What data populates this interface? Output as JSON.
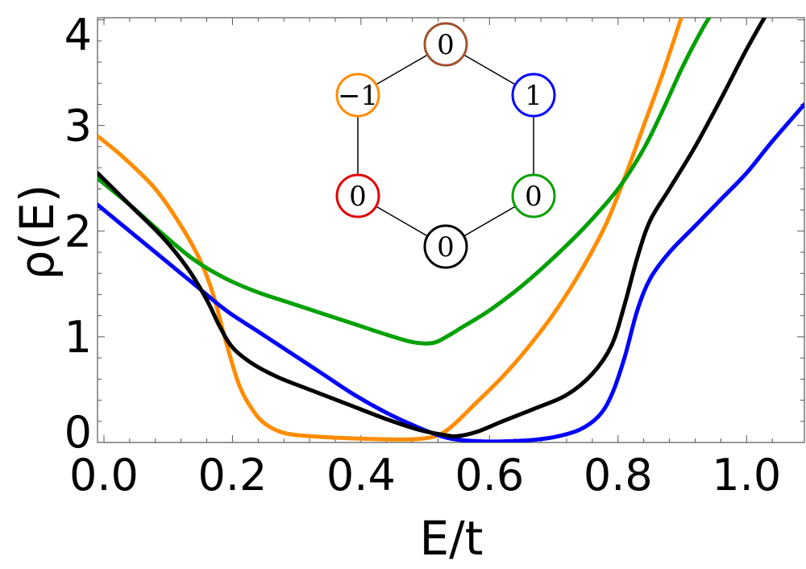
{
  "chart_data": {
    "type": "line",
    "xlabel": "E/t",
    "ylabel": "ρ(E)",
    "xlim": [
      -0.01,
      1.09
    ],
    "ylim": [
      0,
      4.02
    ],
    "x_ticks": [
      "0.0",
      "0.2",
      "0.4",
      "0.6",
      "0.8",
      "1.0"
    ],
    "x_tick_values": [
      0.0,
      0.2,
      0.4,
      0.6,
      0.8,
      1.0
    ],
    "y_ticks": [
      "0",
      "1",
      "2",
      "3",
      "4"
    ],
    "y_tick_values": [
      0,
      1,
      2,
      3,
      4
    ],
    "grid": false,
    "series": [
      {
        "color": "#ff8c00",
        "x": [
          -0.01,
          0.03,
          0.08,
          0.12,
          0.15,
          0.17,
          0.19,
          0.21,
          0.23,
          0.25,
          0.28,
          0.32,
          0.38,
          0.44,
          0.48,
          0.51,
          0.53,
          0.55,
          0.58,
          0.62,
          0.66,
          0.7,
          0.74,
          0.78,
          0.81,
          0.84,
          0.87,
          0.9
        ],
        "y": [
          2.9,
          2.7,
          2.4,
          2.05,
          1.72,
          1.4,
          0.95,
          0.55,
          0.32,
          0.18,
          0.09,
          0.06,
          0.04,
          0.03,
          0.03,
          0.05,
          0.1,
          0.2,
          0.38,
          0.62,
          0.9,
          1.22,
          1.6,
          2.05,
          2.5,
          3.0,
          3.5,
          4.05
        ]
      },
      {
        "color": "#0000ff",
        "x": [
          -0.01,
          0.04,
          0.09,
          0.14,
          0.19,
          0.24,
          0.29,
          0.34,
          0.39,
          0.44,
          0.49,
          0.53,
          0.56,
          0.59,
          0.62,
          0.66,
          0.7,
          0.74,
          0.77,
          0.79,
          0.81,
          0.83,
          0.85,
          0.88,
          0.92,
          0.96,
          1.0,
          1.04,
          1.09
        ],
        "y": [
          2.25,
          2.0,
          1.75,
          1.5,
          1.25,
          1.05,
          0.85,
          0.65,
          0.45,
          0.28,
          0.14,
          0.05,
          0.02,
          0.01,
          0.01,
          0.02,
          0.05,
          0.12,
          0.25,
          0.45,
          0.8,
          1.25,
          1.55,
          1.8,
          2.05,
          2.3,
          2.55,
          2.85,
          3.2
        ]
      },
      {
        "color": "#00a000",
        "x": [
          -0.01,
          0.04,
          0.09,
          0.14,
          0.19,
          0.24,
          0.29,
          0.34,
          0.39,
          0.44,
          0.48,
          0.51,
          0.53,
          0.56,
          0.6,
          0.65,
          0.7,
          0.75,
          0.8,
          0.84,
          0.87,
          0.9,
          0.93,
          0.95
        ],
        "y": [
          2.5,
          2.25,
          1.98,
          1.73,
          1.55,
          1.42,
          1.32,
          1.22,
          1.12,
          1.02,
          0.95,
          0.94,
          0.99,
          1.1,
          1.25,
          1.48,
          1.75,
          2.05,
          2.4,
          2.78,
          3.15,
          3.55,
          3.9,
          4.1
        ]
      },
      {
        "color": "#000000",
        "x": [
          -0.01,
          0.04,
          0.09,
          0.13,
          0.16,
          0.18,
          0.2,
          0.23,
          0.27,
          0.32,
          0.38,
          0.44,
          0.49,
          0.53,
          0.55,
          0.58,
          0.62,
          0.67,
          0.72,
          0.76,
          0.79,
          0.81,
          0.83,
          0.85,
          0.88,
          0.92,
          0.96,
          1.0,
          1.04
        ],
        "y": [
          2.55,
          2.25,
          1.95,
          1.65,
          1.35,
          1.1,
          0.9,
          0.75,
          0.62,
          0.5,
          0.36,
          0.22,
          0.12,
          0.07,
          0.06,
          0.1,
          0.2,
          0.32,
          0.45,
          0.65,
          0.92,
          1.3,
          1.75,
          2.1,
          2.4,
          2.8,
          3.25,
          3.72,
          4.15
        ]
      }
    ],
    "inset": {
      "nodes": [
        {
          "label": "0",
          "color": "#a0522d"
        },
        {
          "label": "1",
          "color": "#0000ff"
        },
        {
          "label": "0",
          "color": "#00a000"
        },
        {
          "label": "0",
          "color": "#000000"
        },
        {
          "label": "0",
          "color": "#e00000"
        },
        {
          "label": "−1",
          "color": "#ff8c00"
        }
      ]
    }
  }
}
